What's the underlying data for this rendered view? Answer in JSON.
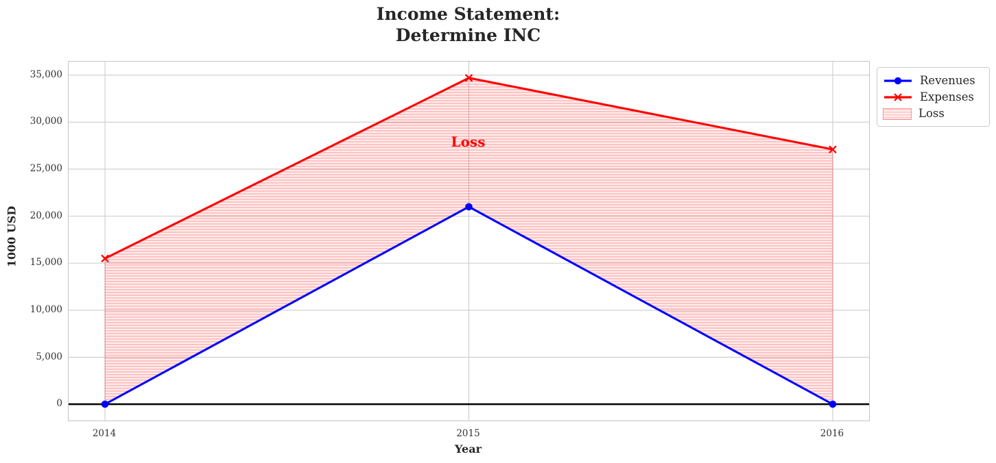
{
  "chart_data": {
    "type": "line",
    "title": "Income Statement:\nDetermine INC",
    "xlabel": "Year",
    "ylabel": "1000 USD",
    "x": [
      2014,
      2015,
      2016
    ],
    "x_tick_labels": [
      "2014",
      "2015",
      "2016"
    ],
    "yticks": [
      0,
      5000,
      10000,
      15000,
      20000,
      25000,
      30000,
      35000
    ],
    "ytick_labels": [
      "0",
      "5,000",
      "10,000",
      "15,000",
      "20,000",
      "25,000",
      "30,000",
      "35,000"
    ],
    "xlim": [
      2013.9,
      2016.1
    ],
    "ylim": [
      -1735,
      36435
    ],
    "grid": true,
    "zero_line": true,
    "series": [
      {
        "name": "Revenues",
        "values": [
          0,
          21000,
          0
        ],
        "color": "#0000ff",
        "marker": "circle"
      },
      {
        "name": "Expenses",
        "values": [
          15500,
          34700,
          27100
        ],
        "color": "#ff0000",
        "marker": "x"
      }
    ],
    "fill_between": {
      "label": "Loss",
      "lower": "Revenues",
      "upper": "Expenses",
      "color": "#ff0000",
      "hatch": "-"
    },
    "annotation": {
      "text": "Loss",
      "x": 2015,
      "y": 27800,
      "color": "#ff0000"
    },
    "legend_position": "outside-top-right"
  }
}
